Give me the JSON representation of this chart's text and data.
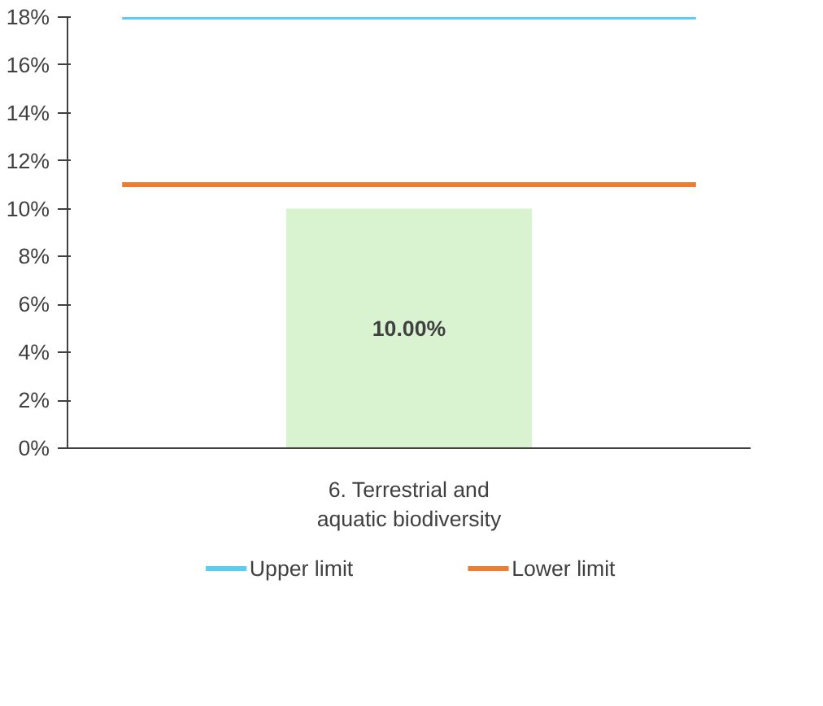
{
  "chart_data": {
    "type": "bar",
    "categories": [
      "6. Terrestrial and\naquatic biodiversity"
    ],
    "values": [
      10
    ],
    "color": "#d9f2d0",
    "value_labels": [
      "10.00%"
    ],
    "ref_lines": [
      {
        "axis": "y",
        "value": 18,
        "label": "Upper limit",
        "color": "#5ccdf2"
      },
      {
        "axis": "y",
        "value": 11,
        "label": "Lower limit",
        "color": "#ed7d31"
      }
    ],
    "ylim": [
      0,
      18
    ],
    "yticks": [
      {
        "value": 0,
        "label": "0%"
      },
      {
        "value": 2,
        "label": "2%"
      },
      {
        "value": 4,
        "label": "4%"
      },
      {
        "value": 6,
        "label": "6%"
      },
      {
        "value": 8,
        "label": "8%"
      },
      {
        "value": 10,
        "label": "10%"
      },
      {
        "value": 12,
        "label": "12%"
      },
      {
        "value": 14,
        "label": "14%"
      },
      {
        "value": 16,
        "label": "16%"
      },
      {
        "value": 18,
        "label": "18%"
      }
    ],
    "grid": false,
    "legend": "bottom"
  }
}
